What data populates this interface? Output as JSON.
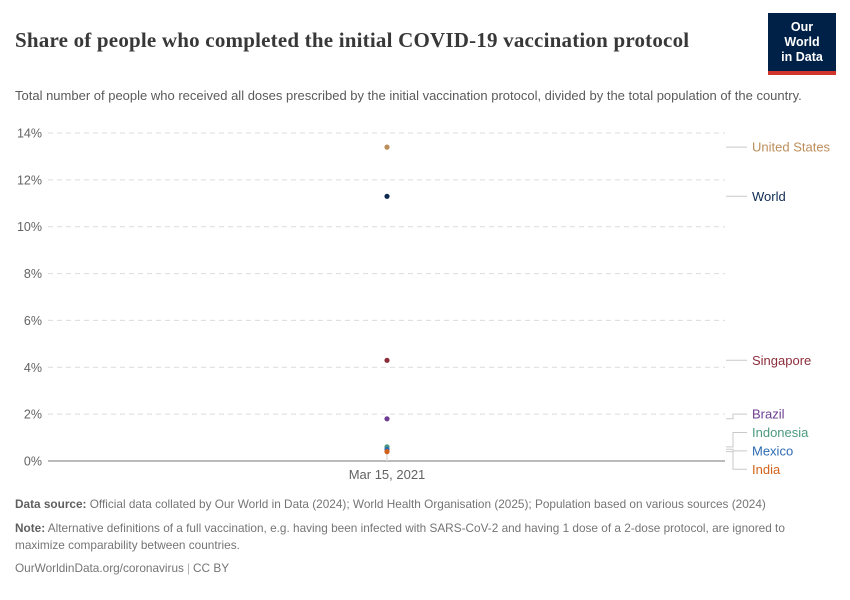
{
  "header": {
    "title": "Share of people who completed the initial COVID-19 vaccination protocol",
    "subtitle": "Total number of people who received all doses prescribed by the initial vaccination protocol, divided by the total population of the country.",
    "logo": {
      "line1": "Our World",
      "line2": "in Data",
      "bg_color": "#002147",
      "accent_color": "#D0342A"
    }
  },
  "chart_data": {
    "type": "scatter",
    "title": "Share of people who completed the initial COVID-19 vaccination protocol",
    "xlabel": "",
    "ylabel": "",
    "x_tick_label": "Mar 15, 2021",
    "ylim": [
      0,
      14
    ],
    "ytick_labels": [
      "0%",
      "2%",
      "4%",
      "6%",
      "8%",
      "10%",
      "12%",
      "14%"
    ],
    "grid": true,
    "legend_position": "right-entity-labels",
    "series": [
      {
        "name": "United States",
        "value": 13.4,
        "color": "#BC8E5A"
      },
      {
        "name": "World",
        "value": 11.3,
        "color": "#0E2A51"
      },
      {
        "name": "Singapore",
        "value": 4.3,
        "color": "#8C2D3C"
      },
      {
        "name": "Brazil",
        "value": 1.8,
        "color": "#6D3E91"
      },
      {
        "name": "Indonesia",
        "value": 0.6,
        "color": "#4C9A81"
      },
      {
        "name": "Mexico",
        "value": 0.5,
        "color": "#2D6BB1"
      },
      {
        "name": "India",
        "value": 0.4,
        "color": "#D2621A"
      }
    ],
    "colors": {
      "gridline": "#dcdcdc",
      "axis_line": "#a3a3a3",
      "tick_label": "#636363",
      "leader_line": "#c9c9c9"
    }
  },
  "footer": {
    "data_source_label": "Data source:",
    "data_source_text": " Official data collated by Our World in Data (2024); World Health Organisation (2025); Population based on various sources (2024)",
    "note_label": "Note:",
    "note_text": " Alternative definitions of a full vaccination, e.g. having been infected with SARS-CoV-2 and having 1 dose of a 2-dose protocol, are ignored to maximize comparability between countries.",
    "link": "OurWorldinData.org/coronavirus",
    "separator": "|",
    "license": "CC BY"
  }
}
